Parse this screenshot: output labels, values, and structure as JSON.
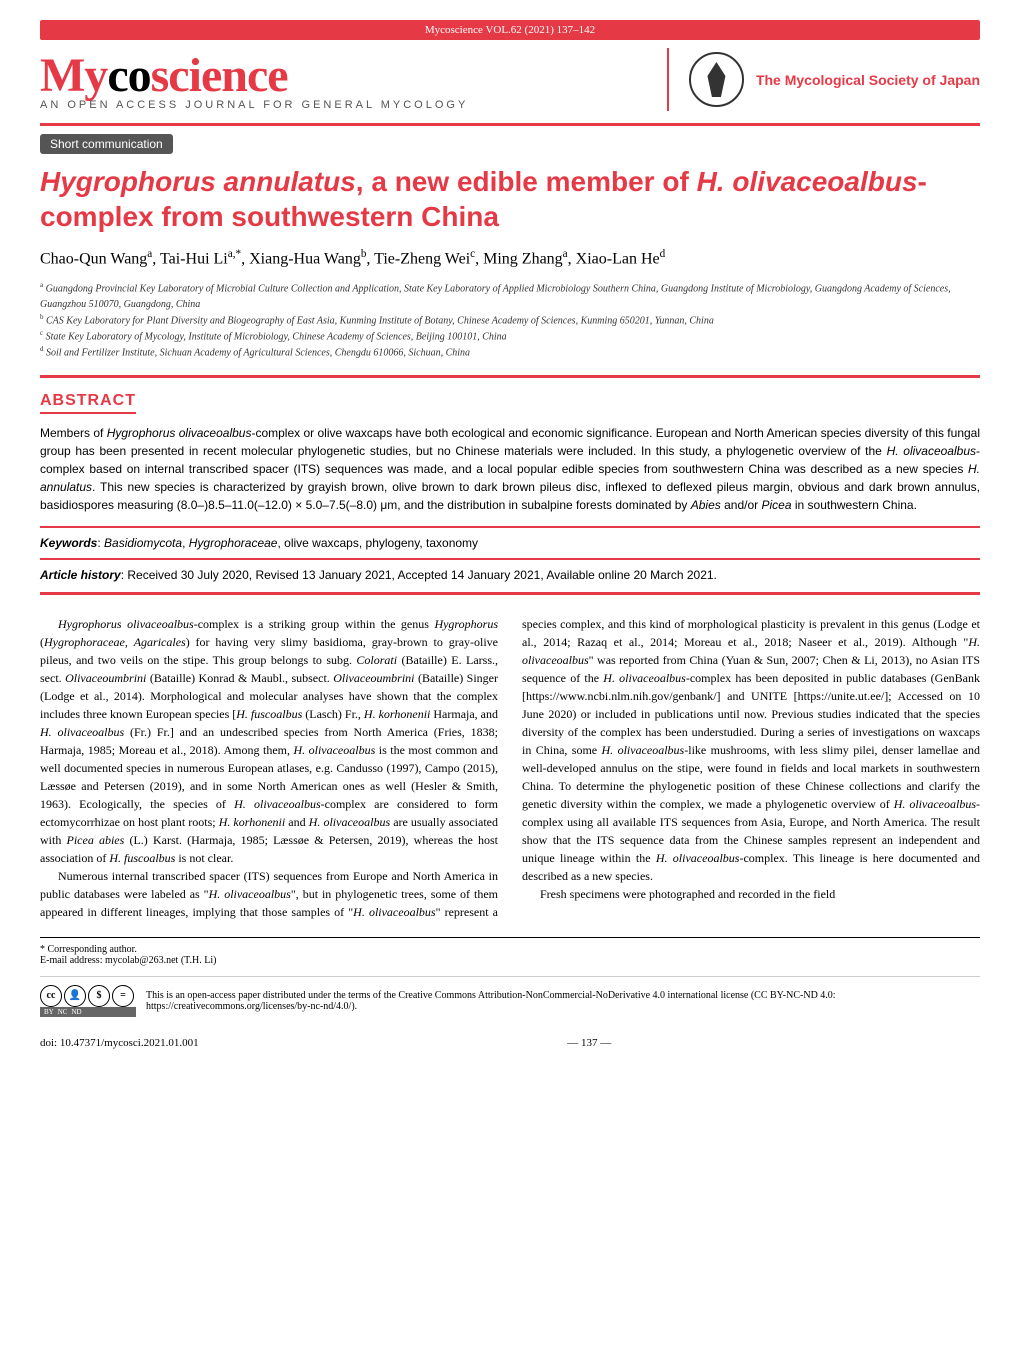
{
  "header": {
    "journal_bar": "Mycoscience VOL.62 (2021) 137–142",
    "logo_text_my": "My",
    "logo_text_co": "co",
    "logo_text_science": "science",
    "logo_subtitle": "An open access journal for general mycology",
    "society_text": "The Mycological Society of Japan"
  },
  "badge": "Short communication",
  "title": {
    "part1_ital": "Hygrophorus annulatus",
    "part2": ", a new edible member of ",
    "part3_ital": "H. olivaceoalbus",
    "part4": "-complex from southwestern China"
  },
  "authors_html": "Chao-Qun Wang<sup>a</sup>, Tai-Hui Li<sup>a,*</sup>, Xiang-Hua Wang<sup>b</sup>, Tie-Zheng Wei<sup>c</sup>, Ming Zhang<sup>a</sup>, Xiao-Lan He<sup>d</sup>",
  "affiliations": {
    "a": "Guangdong Provincial Key Laboratory of Microbial Culture Collection and Application, State Key Laboratory of Applied Microbiology Southern China, Guangdong Institute of Microbiology, Guangdong Academy of Sciences, Guangzhou 510070, Guangdong, China",
    "b": "CAS Key Laboratory for Plant Diversity and Biogeography of East Asia, Kunming Institute of Botany, Chinese Academy of Sciences, Kunming 650201, Yunnan, China",
    "c": "State Key Laboratory of Mycology, Institute of Microbiology, Chinese Academy of Sciences, Beijing 100101, China",
    "d": "Soil and Fertilizer Institute, Sichuan Academy of Agricultural Sciences, Chengdu 610066, Sichuan, China"
  },
  "abstract": {
    "label": "ABSTRACT",
    "text": "Members of <span class=\"ital\">Hygrophorus olivaceoalbus</span>-complex or olive waxcaps have both ecological and economic significance. European and North American species diversity of this fungal group has been presented in recent molecular phylogenetic studies, but no Chinese materials were included. In this study, a phylogenetic overview of the <span class=\"ital\">H. olivaceoalbus</span>-complex based on internal transcribed spacer (ITS) sequences was made, and a local popular edible species from southwestern China was described as a new species <span class=\"ital\">H. annulatus</span>. This new species is characterized by grayish brown, olive brown to dark brown pileus disc, inflexed to deflexed pileus margin, obvious and dark brown annulus, basidiospores measuring (8.0–)8.5–11.0(–12.0) × 5.0–7.5(–8.0) μm, and the distribution in subalpine forests dominated by <span class=\"ital\">Abies</span> and/or <span class=\"ital\">Picea</span> in southwestern China."
  },
  "keywords": {
    "label": "Keywords",
    "text": ": <span class=\"ital\">Basidiomycota</span>, <span class=\"ital\">Hygrophoraceae</span>, olive waxcaps, phylogeny, taxonomy"
  },
  "history": {
    "label": "Article history",
    "text": ": Received 30 July 2020, Revised 13 January 2021, Accepted 14 January 2021, Available online 20 March 2021."
  },
  "body": {
    "p1": "<span class=\"ital\">Hygrophorus olivaceoalbus</span>-complex is a striking group within the genus <span class=\"ital\">Hygrophorus</span> (<span class=\"ital\">Hygrophoraceae</span>, <span class=\"ital\">Agaricales</span>) for having very slimy basidioma, gray-brown to gray-olive pileus, and two veils on the stipe. This group belongs to subg. <span class=\"ital\">Colorati</span> (Bataille) E. Larss., sect. <span class=\"ital\">Olivaceoumbrini</span> (Bataille) Konrad & Maubl., subsect. <span class=\"ital\">Olivaceoumbrini</span> (Bataille) Singer (Lodge et al., 2014). Morphological and molecular analyses have shown that the complex includes three known European species [<span class=\"ital\">H. fuscoalbus</span> (Lasch) Fr., <span class=\"ital\">H. korhonenii</span> Harmaja, and <span class=\"ital\">H. olivaceoalbus</span> (Fr.) Fr.] and an undescribed species from North America (Fries, 1838; Harmaja, 1985; Moreau et al., 2018). Among them, <span class=\"ital\">H. olivaceoalbus</span> is the most common and well documented species in numerous European atlases, e.g. Candusso (1997), Campo (2015), Læssøe and Petersen (2019), and in some North American ones as well (Hesler & Smith, 1963). Ecologically, the species of <span class=\"ital\">H. olivaceoalbus</span>-complex are considered to form ectomycorrhizae on host plant roots; <span class=\"ital\">H. korhonenii</span> and <span class=\"ital\">H. olivaceoalbus</span> are usually associated with <span class=\"ital\">Picea abies</span> (L.) Karst. (Harmaja, 1985; Læssøe & Petersen, 2019), whereas the host association of <span class=\"ital\">H. fuscoalbus</span> is not clear.",
    "p2": "Numerous internal transcribed spacer (ITS) sequences from Europe and North America in public databases were labeled as \"<span class=\"ital\">H. olivaceoalbus</span>\", but in phylogenetic trees, some of them appeared in different lineages, implying that those samples of \"<span class=\"ital\">H. olivaceoalbus</span>\" represent a species complex, and this kind of morphological plasticity is prevalent in this genus (Lodge et al., 2014; Razaq et al., 2014; Moreau et al., 2018; Naseer et al., 2019). Although \"<span class=\"ital\">H. olivaceoalbus</span>\" was reported from China (Yuan & Sun, 2007; Chen & Li, 2013), no Asian ITS sequence of the <span class=\"ital\">H. olivaceoalbus</span>-complex has been deposited in public databases (GenBank [https://www.ncbi.nlm.nih.gov/genbank/] and UNITE [https://unite.ut.ee/]; Accessed on 10 June 2020) or included in publications until now. Previous studies indicated that the species diversity of the complex has been understudied. During a series of investigations on waxcaps in China, some <span class=\"ital\">H. olivaceoalbus</span>-like mushrooms, with less slimy pilei, denser lamellae and well-developed annulus on the stipe, were found in fields and local markets in southwestern China. To determine the phylogenetic position of these Chinese collections and clarify the genetic diversity within the complex, we made a phylogenetic overview of <span class=\"ital\">H. olivaceoalbus</span>-complex using all available ITS sequences from Asia, Europe, and North America. The result show that the ITS sequence data from the Chinese samples represent an independent and unique lineage within the <span class=\"ital\">H. olivaceoalbus</span>-complex. This lineage is here documented and described as a new species.",
    "p3": "Fresh specimens were photographed and recorded in the field"
  },
  "corresponding": {
    "label": "* Corresponding author.",
    "email": "E-mail address: mycolab@263.net (T.H. Li)"
  },
  "license": {
    "text": "This is an open-access paper distributed under the terms of the Creative Commons Attribution-NonCommercial-NoDerivative 4.0 international license (CC BY-NC-ND 4.0: https://creativecommons.org/licenses/by-nc-nd/4.0/).",
    "cc": "cc",
    "by": "BY",
    "nc": "NC",
    "nd": "ND"
  },
  "footer": {
    "doi": "doi: 10.47371/mycosci.2021.01.001",
    "page": "— 137 —"
  },
  "colors": {
    "accent": "#e63946",
    "badge_bg": "#555555",
    "text": "#000000"
  }
}
